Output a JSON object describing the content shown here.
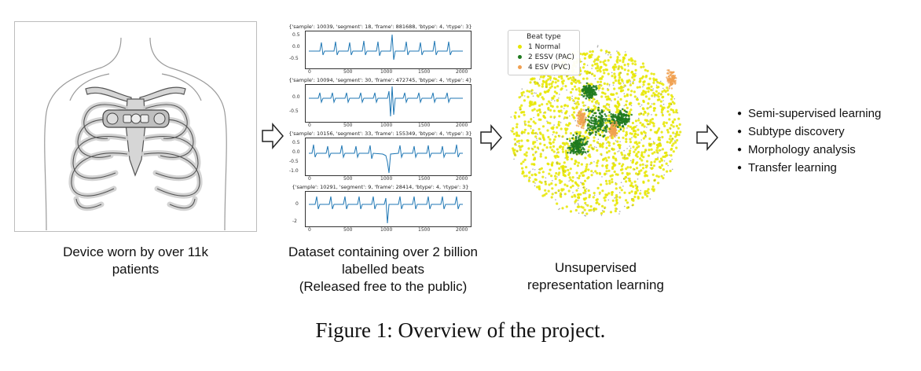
{
  "panels": {
    "device": {
      "caption": [
        "Device worn by over 11k",
        "patients"
      ]
    },
    "dataset": {
      "caption": [
        "Dataset containing over 2 billion",
        "labelled beats",
        "(Released free to the public)"
      ],
      "plots": [
        {
          "header": "{'sample': 10039, 'segment': 18, 'frame': 881688, 'btype': 4, 'rtype': 3}",
          "yticks": [
            "0.5",
            "0.0",
            "-0.5"
          ],
          "xticks": [
            "0",
            "500",
            "1000",
            "1500",
            "2000"
          ]
        },
        {
          "header": "{'sample': 10094, 'segment': 30, 'frame': 472745, 'btype': 4, 'rtype': 4}",
          "yticks": [
            "0.0",
            "-0.5"
          ],
          "xticks": [
            "0",
            "500",
            "1000",
            "1500",
            "2000"
          ]
        },
        {
          "header": "{'sample': 10156, 'segment': 33, 'frame': 155349, 'btype': 4, 'rtype': 3}",
          "yticks": [
            "0.5",
            "0.0",
            "-0.5",
            "-1.0"
          ],
          "xticks": [
            "0",
            "500",
            "1000",
            "1500",
            "2000"
          ]
        },
        {
          "header": "{'sample': 10291, 'segment': 9, 'frame': 28414, 'btype': 4, 'rtype': 3}",
          "yticks": [
            "0",
            "-2"
          ],
          "xticks": [
            "0",
            "500",
            "1000",
            "1500",
            "2000"
          ]
        }
      ]
    },
    "representation": {
      "caption": [
        "Unsupervised",
        "representation learning"
      ],
      "legend": {
        "title": "Beat type",
        "items": [
          {
            "label": "1 Normal",
            "color": "#e6e600"
          },
          {
            "label": "2 ESSV (PAC)",
            "color": "#1f7a1f"
          },
          {
            "label": "4 ESV (PVC)",
            "color": "#f0a050"
          }
        ]
      }
    },
    "applications": {
      "items": [
        "Semi-supervised learning",
        "Subtype discovery",
        "Morphology analysis",
        "Transfer learning"
      ]
    }
  },
  "figure_caption": "Figure 1: Overview of the project."
}
